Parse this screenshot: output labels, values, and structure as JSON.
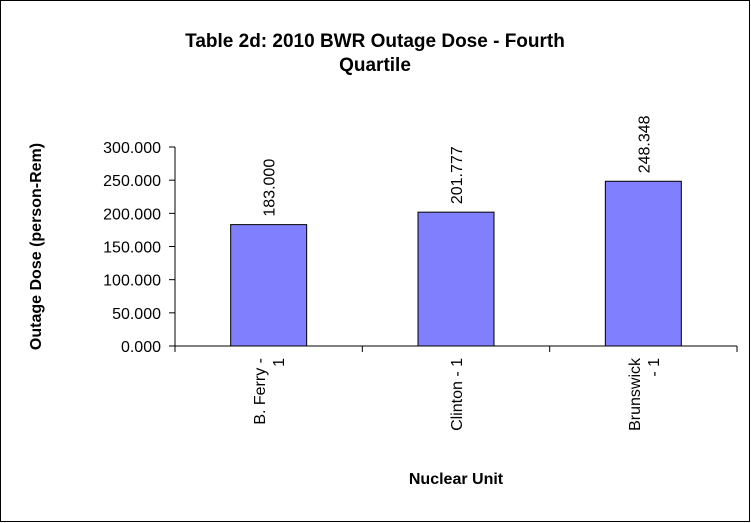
{
  "chart_data": {
    "type": "bar",
    "title": "Table 2d: 2010 BWR Outage Dose - Fourth Quartile",
    "x_label": "Nuclear Unit",
    "y_label": "Outage Dose (person-Rem)",
    "categories": [
      "B. Ferry - 1",
      "Clinton - 1",
      "Brunswick - 1"
    ],
    "values": [
      183,
      201.777,
      248.348
    ],
    "value_labels": [
      "183.000",
      "201.777",
      "248.348"
    ],
    "color": "#8080ff",
    "ylim": [
      0,
      300
    ],
    "yticks": [
      {
        "value": 0,
        "label": "0.000"
      },
      {
        "value": 50,
        "label": "50.000"
      },
      {
        "value": 100,
        "label": "100.000"
      },
      {
        "value": 150,
        "label": "150.000"
      },
      {
        "value": 200,
        "label": "200.000"
      },
      {
        "value": 250,
        "label": "250.000"
      },
      {
        "value": 300,
        "label": "300.000"
      }
    ],
    "grid": false
  }
}
